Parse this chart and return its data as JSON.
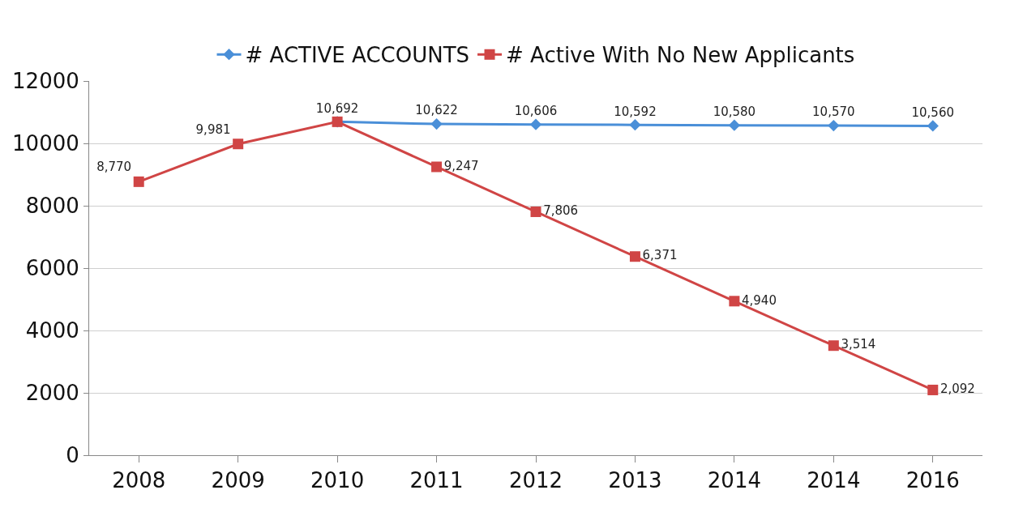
{
  "chart_data": {
    "type": "line",
    "categories": [
      "2008",
      "2009",
      "2010",
      "2011",
      "2012",
      "2013",
      "2014",
      "2014",
      "2016"
    ],
    "series": [
      {
        "name": "# ACTIVE ACCOUNTS",
        "color": "#4a8fd8",
        "marker": "diamond",
        "values": [
          null,
          null,
          10692,
          10622,
          10606,
          10592,
          10580,
          10570,
          10560
        ],
        "value_labels": [
          null,
          null,
          "10,692",
          "10,622",
          "10,606",
          "10,592",
          "10,580",
          "10,570",
          "10,560"
        ]
      },
      {
        "name": "# Active With No New Applicants",
        "color": "#d04545",
        "marker": "square",
        "values": [
          8770,
          9981,
          10692,
          9247,
          7806,
          6371,
          4940,
          3514,
          2092
        ],
        "value_labels": [
          "8,770",
          "9,981",
          null,
          "9,247",
          "7,806",
          "6,371",
          "4,940",
          "3,514",
          "2,092"
        ]
      }
    ],
    "ylim": [
      0,
      12000
    ],
    "yticks": [
      0,
      2000,
      4000,
      6000,
      8000,
      10000,
      12000
    ],
    "grid": "y",
    "legend": "top"
  }
}
